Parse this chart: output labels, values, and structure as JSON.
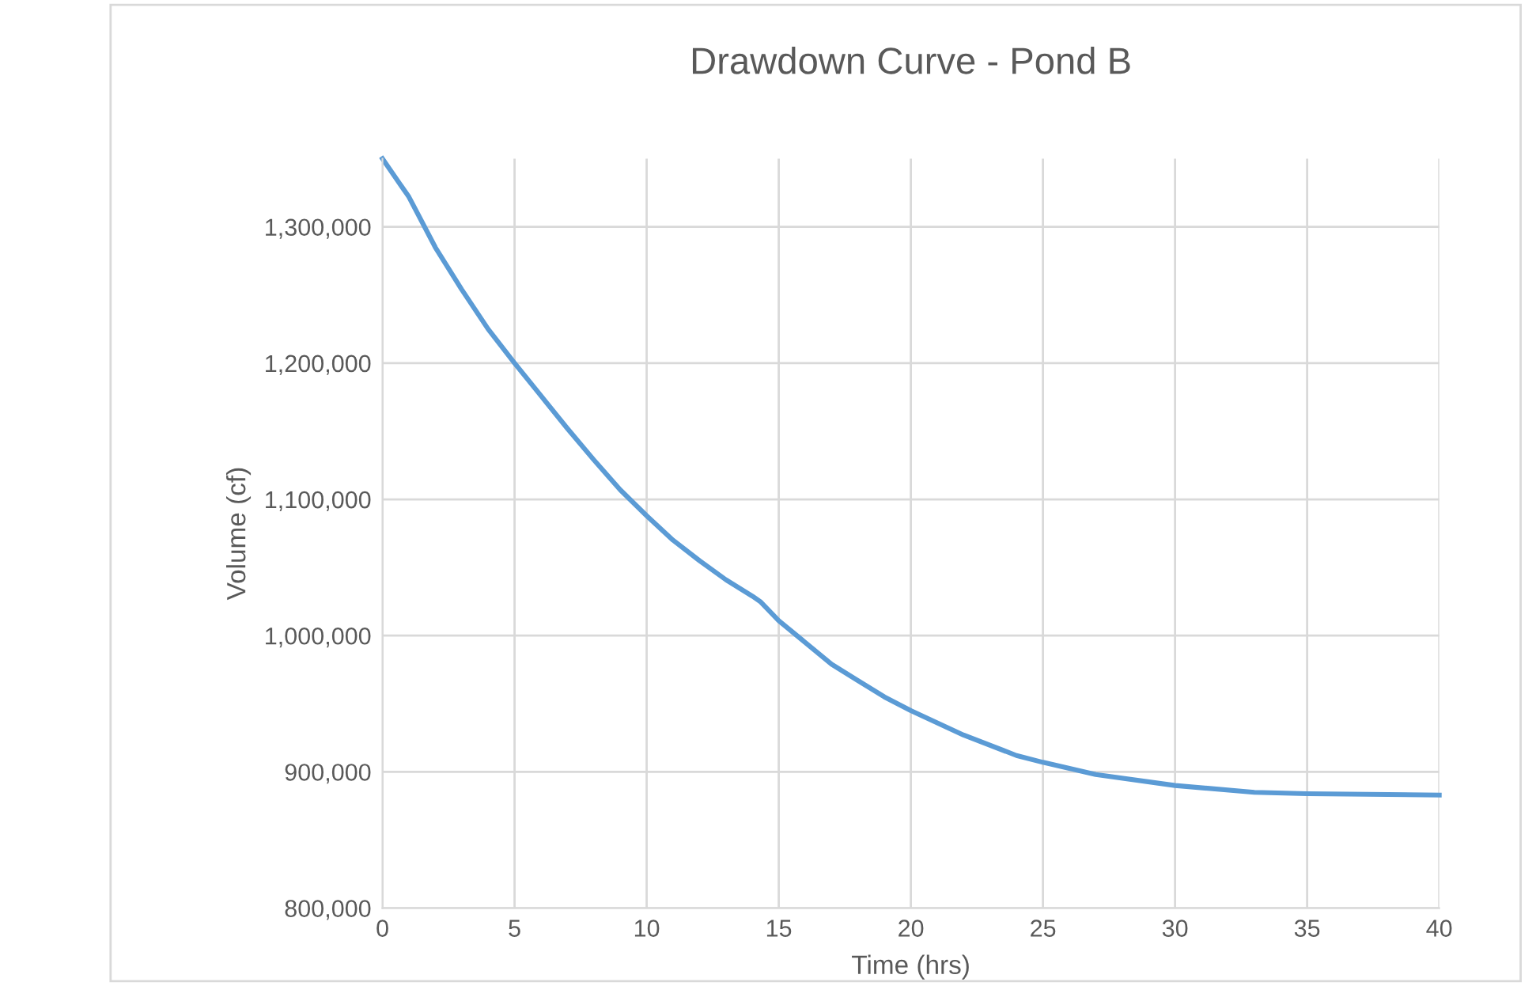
{
  "chart_data": {
    "type": "line",
    "title": "Drawdown Curve - Pond B",
    "xlabel": "Time (hrs)",
    "ylabel": "Volume (cf)",
    "x": [
      0,
      1,
      2,
      3,
      4,
      5,
      6,
      7,
      8,
      9,
      10,
      11,
      12,
      13,
      14,
      14.3,
      15,
      16,
      17,
      18,
      19,
      20,
      22,
      24,
      25,
      27,
      30,
      33,
      35,
      40
    ],
    "series": [
      {
        "color": "#5b9bd5",
        "values": [
          1350000,
          1322000,
          1285000,
          1254000,
          1225000,
          1200000,
          1176000,
          1152000,
          1129000,
          1107000,
          1088000,
          1070000,
          1055000,
          1041000,
          1029000,
          1025000,
          1011000,
          995000,
          979000,
          967000,
          955000,
          945000,
          927000,
          912000,
          907000,
          898000,
          890000,
          885000,
          884000,
          883000
        ]
      }
    ],
    "xlim": [
      0,
      40
    ],
    "xticks": [
      0,
      5,
      10,
      15,
      20,
      25,
      30,
      35,
      40
    ],
    "ylim": [
      800000,
      1350000
    ],
    "yticks": [
      {
        "value": 800000,
        "label": "800,000"
      },
      {
        "value": 900000,
        "label": "900,000"
      },
      {
        "value": 1000000,
        "label": "1,000,000"
      },
      {
        "value": 1100000,
        "label": "1,100,000"
      },
      {
        "value": 1200000,
        "label": "1,200,000"
      },
      {
        "value": 1300000,
        "label": "1,300,000"
      }
    ],
    "grid": true,
    "marker": "none",
    "line_style": "solid"
  }
}
